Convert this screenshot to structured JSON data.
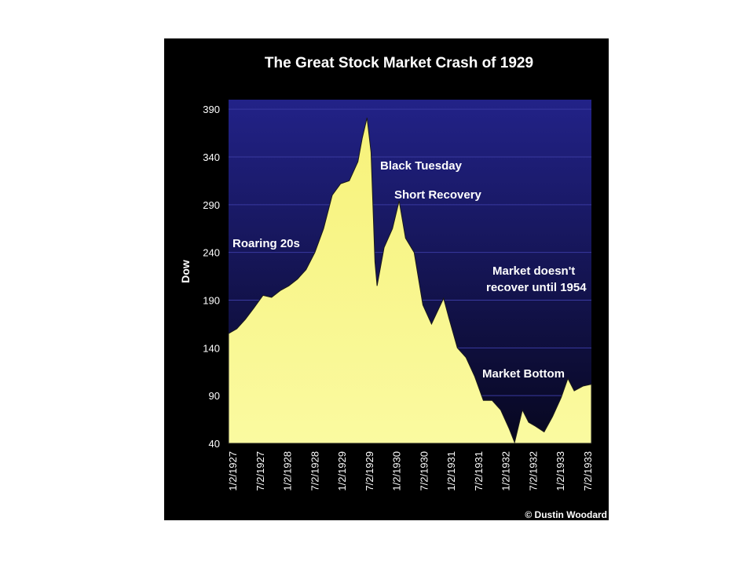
{
  "chart_data": {
    "type": "area",
    "title": "The Great Stock Market Crash of 1929",
    "ylabel": "Dow",
    "xlabel": "",
    "ylim": [
      40,
      400
    ],
    "yticks": [
      390,
      340,
      290,
      240,
      190,
      140,
      90,
      40
    ],
    "xticks": [
      "1/2/1927",
      "7/2/1927",
      "1/2/1928",
      "7/2/1928",
      "1/2/1929",
      "7/2/1929",
      "1/2/1930",
      "7/2/1930",
      "1/2/1931",
      "7/2/1931",
      "1/2/1932",
      "7/2/1932",
      "1/2/1933",
      "7/2/1933"
    ],
    "grid": true,
    "colors": {
      "background": "#000000",
      "plot_top": "#222288",
      "plot_bottom": "#07071f",
      "fill": "#fafaa0",
      "fill_top": "#f7f27a",
      "text": "#ffffff"
    },
    "series": [
      {
        "x": [
          "1927-01-02",
          "1927-03-01",
          "1927-05-01",
          "1927-07-01",
          "1927-09-01",
          "1927-11-01",
          "1928-01-01",
          "1928-03-01",
          "1928-05-01",
          "1928-07-01",
          "1928-09-01",
          "1928-11-01",
          "1929-01-01",
          "1929-03-01",
          "1929-05-01",
          "1929-07-01",
          "1929-08-01",
          "1929-09-03",
          "1929-10-01",
          "1929-10-29",
          "1929-11-13",
          "1930-01-01",
          "1930-03-01",
          "1930-04-17",
          "1930-06-01",
          "1930-08-01",
          "1930-10-01",
          "1930-12-01",
          "1931-02-24",
          "1931-04-01",
          "1931-06-01",
          "1931-08-01",
          "1931-10-01",
          "1931-12-01",
          "1932-02-01",
          "1932-04-01",
          "1932-06-01",
          "1932-07-08",
          "1932-09-01",
          "1932-10-15",
          "1932-12-01",
          "1933-02-01",
          "1933-04-01",
          "1933-06-01",
          "1933-07-18",
          "1933-09-01",
          "1933-11-01",
          "1933-12-31"
        ],
        "values": [
          155,
          160,
          170,
          182,
          195,
          193,
          200,
          205,
          212,
          222,
          240,
          265,
          300,
          312,
          315,
          335,
          360,
          381,
          345,
          230,
          205,
          245,
          265,
          294,
          255,
          240,
          185,
          165,
          192,
          172,
          140,
          130,
          110,
          85,
          85,
          75,
          55,
          41,
          75,
          62,
          58,
          52,
          68,
          88,
          108,
          95,
          100,
          102
        ]
      }
    ],
    "annotations": [
      "Roaring 20s",
      "Black Tuesday",
      "Short Recovery",
      "Market doesn't",
      "recover until 1954",
      "Market Bottom"
    ],
    "credit": "© Dustin Woodard"
  }
}
